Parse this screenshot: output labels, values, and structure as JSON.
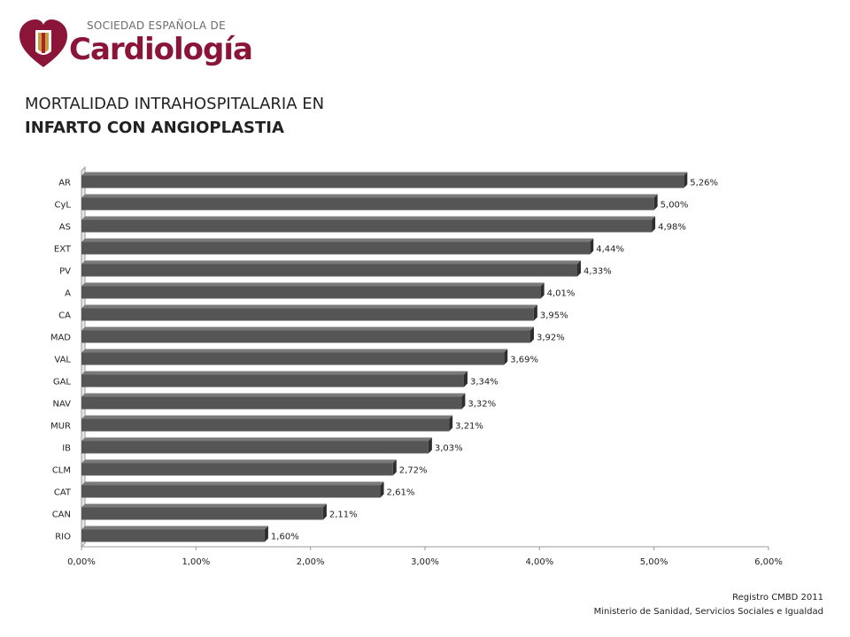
{
  "logo": {
    "top_text": "SOCIEDAD ESPAÑOLA DE",
    "main_text": "Cardiología"
  },
  "title": {
    "line1": "MORTALIDAD INTRAHOSPITALARIA EN",
    "line2": "INFARTO CON ANGIOPLASTIA"
  },
  "source": {
    "line1": "Registro CMBD 2011",
    "line2": "Ministerio de Sanidad, Servicios Sociales e Igualdad"
  },
  "colors": {
    "bar": "#555555",
    "bar_top": "#7a7a7a",
    "bar_side": "#2e2e2e",
    "brand": "#8a1538"
  },
  "chart_data": {
    "type": "bar",
    "orientation": "horizontal",
    "categories": [
      "AR",
      "CyL",
      "AS",
      "EXT",
      "PV",
      "A",
      "CA",
      "MAD",
      "VAL",
      "GAL",
      "NAV",
      "MUR",
      "IB",
      "CLM",
      "CAT",
      "CAN",
      "RIO"
    ],
    "values": [
      5.26,
      5.0,
      4.98,
      4.44,
      4.33,
      4.01,
      3.95,
      3.92,
      3.69,
      3.34,
      3.32,
      3.21,
      3.03,
      2.72,
      2.61,
      2.11,
      1.6
    ],
    "data_labels": [
      "5,26%",
      "5,00%",
      "4,98%",
      "4,44%",
      "4,33%",
      "4,01%",
      "3,95%",
      "3,92%",
      "3,69%",
      "3,34%",
      "3,32%",
      "3,21%",
      "3,03%",
      "2,72%",
      "2,61%",
      "2,11%",
      "1,60%"
    ],
    "x_ticks": [
      "0,00%",
      "1,00%",
      "2,00%",
      "3,00%",
      "4,00%",
      "5,00%",
      "6,00%"
    ],
    "xlim": [
      0,
      6
    ],
    "grid": false,
    "legend": "none"
  }
}
